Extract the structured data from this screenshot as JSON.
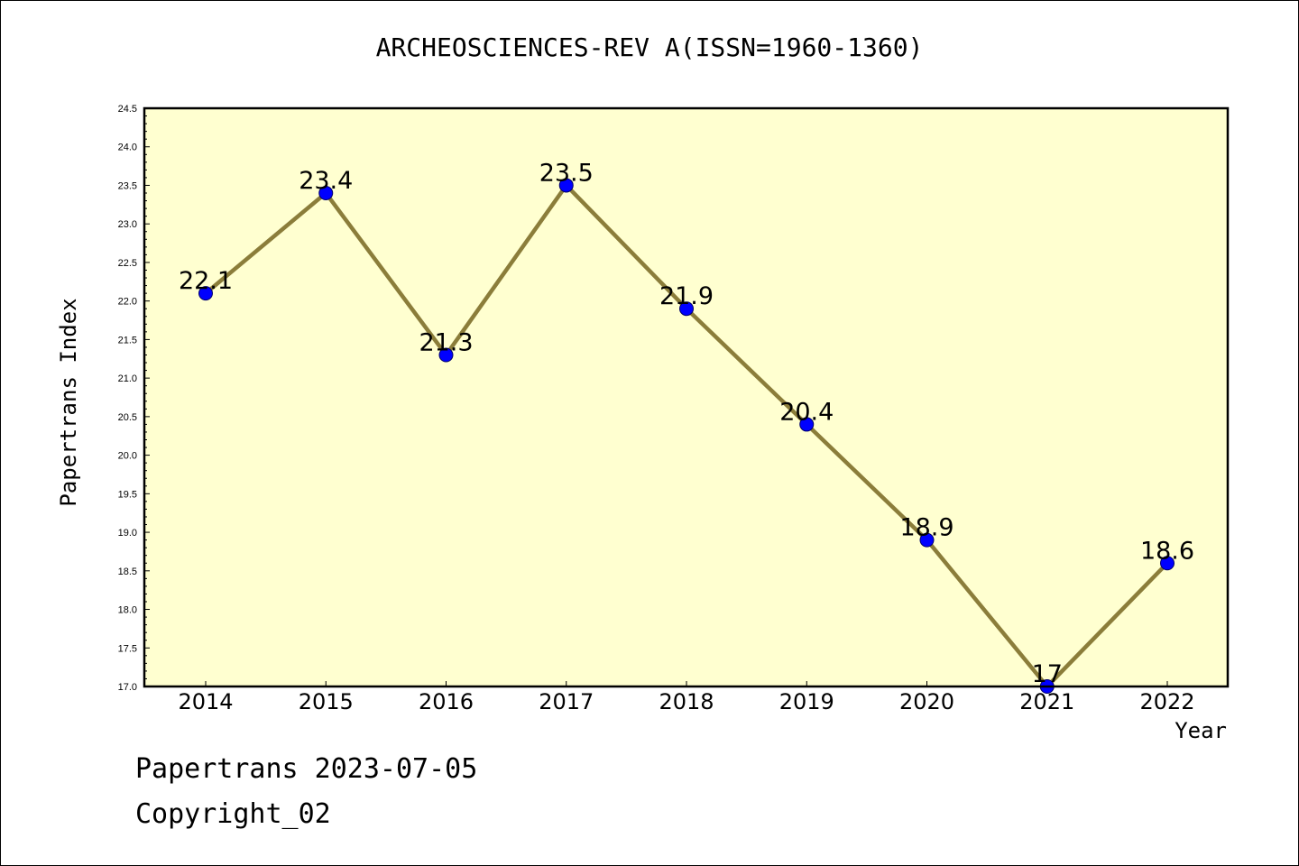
{
  "chart_data": {
    "type": "line",
    "title": "ARCHEOSCIENCES-REV A(ISSN=1960-1360)",
    "xlabel": "Year",
    "ylabel": "Papertrans Index",
    "categories": [
      "2014",
      "2015",
      "2016",
      "2017",
      "2018",
      "2019",
      "2020",
      "2021",
      "2022"
    ],
    "series": [
      {
        "values": [
          22.1,
          23.4,
          21.3,
          23.5,
          21.9,
          20.4,
          18.9,
          17.0,
          18.6
        ],
        "labels": [
          "22.1",
          "23.4",
          "21.3",
          "23.5",
          "21.9",
          "20.4",
          "18.9",
          "17",
          "18.6"
        ]
      }
    ],
    "ylim": [
      17.0,
      24.5
    ],
    "yticks": [
      "17.0",
      "17.5",
      "18.0",
      "18.5",
      "19.0",
      "19.5",
      "20.0",
      "20.5",
      "21.0",
      "21.5",
      "22.0",
      "22.5",
      "23.0",
      "23.5",
      "24.0",
      "24.5"
    ],
    "grid": false,
    "colors": {
      "plot_background": "#ffffd0",
      "line": "#8b7d3a",
      "marker": "#0000ff"
    }
  },
  "footer": {
    "line1": "Papertrans 2023-07-05",
    "line2": "Copyright_02"
  }
}
